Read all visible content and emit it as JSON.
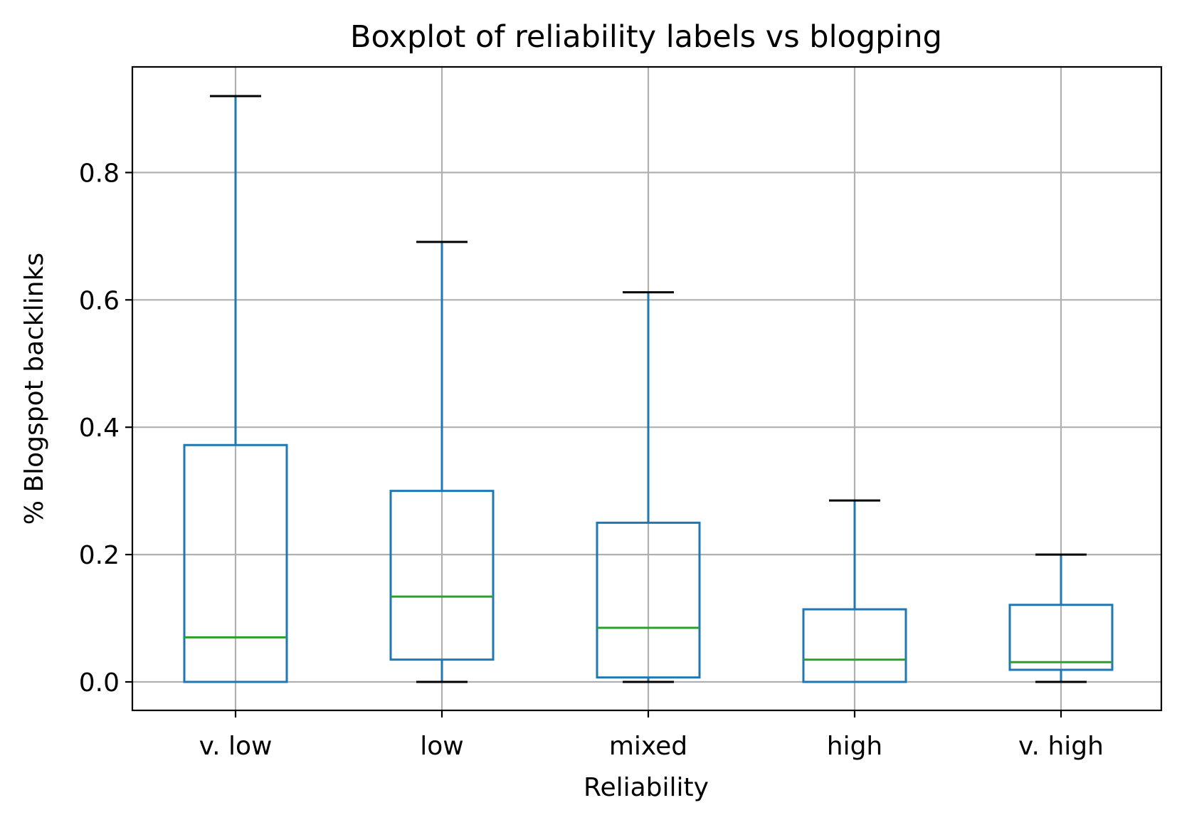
{
  "chart_data": {
    "type": "boxplot",
    "title": "Boxplot of reliability labels vs blogping",
    "xlabel": "Reliability",
    "ylabel": "% Blogspot backlinks",
    "categories": [
      "v. low",
      "low",
      "mixed",
      "high",
      "v. high"
    ],
    "boxes": [
      {
        "category": "v. low",
        "whisker_low": 0.0,
        "q1": 0.0,
        "median": 0.07,
        "q3": 0.372,
        "whisker_high": 0.92
      },
      {
        "category": "low",
        "whisker_low": 0.0,
        "q1": 0.035,
        "median": 0.134,
        "q3": 0.3,
        "whisker_high": 0.691
      },
      {
        "category": "mixed",
        "whisker_low": 0.0,
        "q1": 0.007,
        "median": 0.085,
        "q3": 0.25,
        "whisker_high": 0.612
      },
      {
        "category": "high",
        "whisker_low": 0.0,
        "q1": 0.0,
        "median": 0.035,
        "q3": 0.114,
        "whisker_high": 0.285
      },
      {
        "category": "v. high",
        "whisker_low": 0.0,
        "q1": 0.019,
        "median": 0.031,
        "q3": 0.121,
        "whisker_high": 0.2
      }
    ],
    "yticks": [
      0.0,
      0.2,
      0.4,
      0.6,
      0.8
    ],
    "ytick_labels": [
      "0.0",
      "0.2",
      "0.4",
      "0.6",
      "0.8"
    ],
    "ylim": [
      -0.045,
      0.966
    ],
    "grid": true,
    "colors": {
      "box": "#1f77b4",
      "median": "#2ca02c",
      "cap": "#000000",
      "grid": "#b0b0b0"
    }
  }
}
